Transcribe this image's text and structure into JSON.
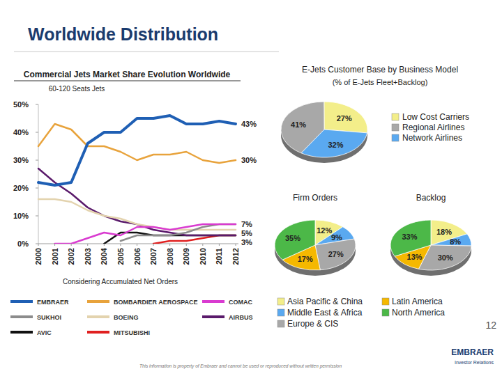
{
  "header": {
    "title": "Worldwide Distribution"
  },
  "chart_data": [
    {
      "type": "line",
      "title": "Commercial Jets Market Share Evolution Worldwide",
      "subtitle": "60-120 Seats Jets",
      "note": "Considering Accumulated Net Orders",
      "categories": [
        "2000",
        "2001",
        "2002",
        "2003",
        "2004",
        "2005",
        "2006",
        "2007",
        "2008",
        "2009",
        "2010",
        "2011",
        "2012"
      ],
      "ylim": [
        0,
        50
      ],
      "yticks": [
        {
          "value": 0,
          "label": "0%"
        },
        {
          "value": 10,
          "label": "10%"
        },
        {
          "value": 20,
          "label": "20%"
        },
        {
          "value": 30,
          "label": "30%"
        },
        {
          "value": 40,
          "label": "40%"
        },
        {
          "value": 50,
          "label": "50%"
        }
      ],
      "grid": false,
      "legend": "bottom",
      "series": [
        {
          "name": "EMBRAER",
          "color": "#1f5fb4",
          "values": [
            22,
            21,
            22,
            36,
            40,
            40,
            45,
            45,
            46,
            43,
            43,
            44,
            43
          ]
        },
        {
          "name": "BOMBARDIER AEROSPACE",
          "color": "#e8a33c",
          "values": [
            35,
            43,
            41,
            35,
            35,
            33,
            30,
            32,
            32,
            33,
            30,
            29,
            30
          ]
        },
        {
          "name": "COMAC",
          "color": "#d93bd0",
          "values": [
            null,
            0,
            0,
            2,
            4,
            3,
            6,
            6,
            5,
            6,
            7,
            7,
            7
          ]
        },
        {
          "name": "SUKHOI",
          "color": "#8c8c8c",
          "values": [
            null,
            null,
            null,
            null,
            null,
            1,
            3,
            3,
            3,
            4,
            6,
            7,
            7
          ]
        },
        {
          "name": "BOEING",
          "color": "#e3d3ae",
          "values": [
            16,
            16,
            15,
            12,
            10,
            9,
            7,
            6,
            5,
            5,
            5,
            5,
            5
          ]
        },
        {
          "name": "AIRBUS",
          "color": "#5a1a6b",
          "values": [
            27,
            22,
            18,
            13,
            10,
            8,
            7,
            5,
            4,
            3,
            3,
            3,
            3
          ]
        },
        {
          "name": "AVIC",
          "color": "#111111",
          "values": [
            null,
            null,
            null,
            null,
            0,
            4,
            4,
            3,
            3,
            3,
            3,
            3,
            3
          ]
        },
        {
          "name": "MITSUBISHI",
          "color": "#e02020",
          "values": [
            null,
            null,
            null,
            null,
            null,
            null,
            null,
            0,
            1,
            1,
            2,
            3,
            3
          ]
        }
      ],
      "annotations": [
        {
          "value": 43,
          "label": "43%"
        },
        {
          "value": 30,
          "label": "30%"
        },
        {
          "value": 7,
          "label": "7%"
        },
        {
          "value": 5,
          "label": "5%"
        },
        {
          "value": 3,
          "label": "3%"
        }
      ]
    },
    {
      "type": "pie",
      "title": "E-Jets Customer Base by Business Model",
      "subtitle": "(% of E-Jets Fleet+Backlog)",
      "categories": [
        "Low Cost Carriers",
        "Regional Airlines",
        "Network Airlines"
      ],
      "values": [
        27,
        41,
        32
      ],
      "value_labels": [
        "27%",
        "41%",
        "32%"
      ],
      "colors": [
        "#f3ee8a",
        "#a8a8a8",
        "#5aa9f0"
      ],
      "data_labels": true,
      "legend": "right"
    },
    {
      "type": "pie",
      "title": "Firm Orders",
      "categories": [
        "Asia Pacific & China",
        "Middle East & Africa",
        "Europe & CIS",
        "Latin America",
        "North America"
      ],
      "values": [
        12,
        9,
        27,
        17,
        35
      ],
      "value_labels": [
        "12%",
        "9%",
        "27%",
        "17%",
        "35%"
      ],
      "colors": [
        "#f3ee8a",
        "#5aa9f0",
        "#a8a8a8",
        "#f5b800",
        "#4cb848"
      ],
      "data_labels": true,
      "legend": "bottom"
    },
    {
      "type": "pie",
      "title": "Backlog",
      "values": [
        18,
        8,
        30,
        13,
        33
      ],
      "value_labels": [
        "18%",
        "8%",
        "30%",
        "13%",
        "33%"
      ],
      "colors": [
        "#f3ee8a",
        "#5aa9f0",
        "#a8a8a8",
        "#f5b800",
        "#4cb848"
      ],
      "data_labels": true
    }
  ],
  "footer": {
    "disclaimer": "This information is property of Embraer and cannot be used or reproduced without written permission",
    "page": 12,
    "brand": "EMBRAER",
    "department": "Investor Relations"
  }
}
